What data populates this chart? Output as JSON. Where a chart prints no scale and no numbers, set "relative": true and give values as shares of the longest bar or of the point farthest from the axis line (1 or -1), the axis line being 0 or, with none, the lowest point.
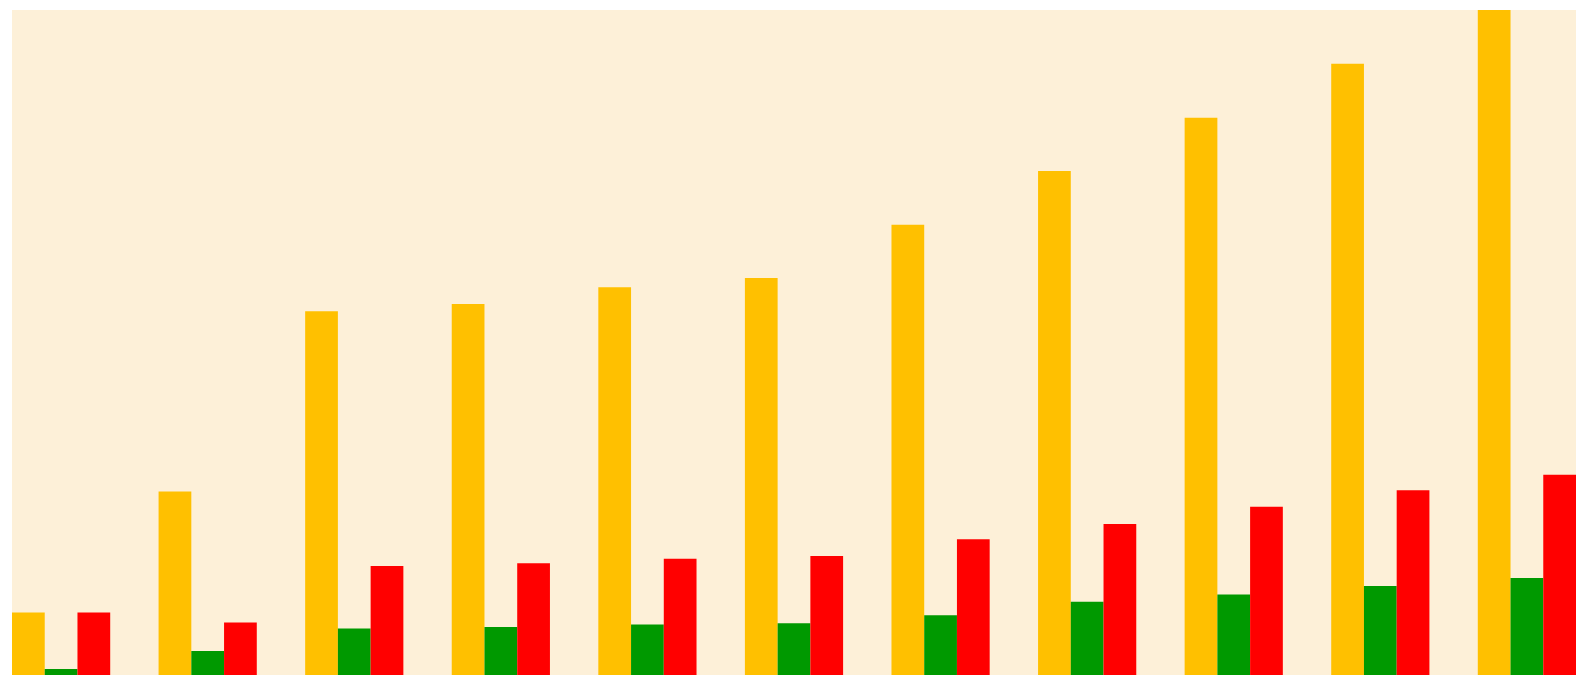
{
  "chart_data": {
    "type": "bar",
    "relative": true,
    "categories": [
      null,
      null,
      null,
      null,
      null,
      null,
      null,
      null,
      null,
      null,
      null
    ],
    "series": [
      {
        "color": "#ffc000",
        "values": [
          0.094,
          0.276,
          0.547,
          0.558,
          0.583,
          0.597,
          0.677,
          0.758,
          0.838,
          0.919,
          1
        ]
      },
      {
        "color": "#009900",
        "values": [
          0.009,
          0.036,
          0.07,
          0.072,
          0.076,
          0.078,
          0.09,
          0.11,
          0.121,
          0.134,
          0.146
        ]
      },
      {
        "color": "#ff0000",
        "values": [
          0.094,
          0.079,
          0.164,
          0.168,
          0.175,
          0.179,
          0.204,
          0.227,
          0.253,
          0.278,
          0.301
        ]
      }
    ]
  }
}
